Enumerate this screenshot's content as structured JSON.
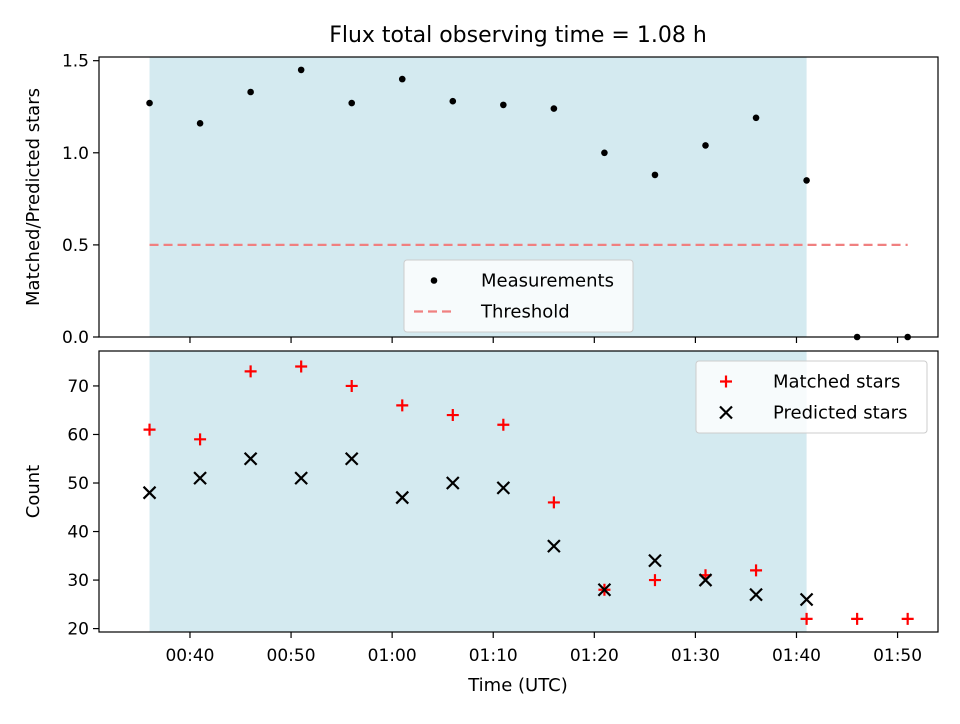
{
  "figure": {
    "title": "Flux total observing time = 1.08 h",
    "xlabel": "Time (UTC)",
    "x_tick_labels": [
      "00:40",
      "00:50",
      "01:00",
      "01:10",
      "01:20",
      "01:30",
      "01:40",
      "01:50"
    ]
  },
  "chart_data": [
    {
      "type": "scatter",
      "panel": "top",
      "ylabel": "Matched/Predicted stars",
      "xlim": [
        "00:31",
        "01:54"
      ],
      "ylim": [
        0,
        1.52
      ],
      "y_ticks": [
        0.0,
        0.5,
        1.0,
        1.5
      ],
      "y_tick_labels": [
        "0.0",
        "0.5",
        "1.0",
        "1.5"
      ],
      "shaded_span": [
        "00:36",
        "01:41"
      ],
      "shade_color": "#d4eaf0",
      "legend_position": "lower-center",
      "series": [
        {
          "name": "Measurements",
          "marker": "dot",
          "color": "#000000",
          "x": [
            "00:36",
            "00:41",
            "00:46",
            "00:51",
            "00:56",
            "01:01",
            "01:06",
            "01:11",
            "01:16",
            "01:21",
            "01:26",
            "01:31",
            "01:36",
            "01:41",
            "01:46",
            "01:51"
          ],
          "y": [
            1.27,
            1.16,
            1.33,
            1.45,
            1.27,
            1.4,
            1.28,
            1.26,
            1.24,
            1.0,
            0.88,
            1.04,
            1.19,
            0.85,
            0.0,
            0.0
          ]
        },
        {
          "name": "Threshold",
          "style": "dashed-line",
          "color": "#f08080",
          "x": [
            "00:36",
            "01:51"
          ],
          "y": [
            0.5,
            0.5
          ]
        }
      ]
    },
    {
      "type": "scatter",
      "panel": "bottom",
      "ylabel": "Count",
      "xlabel": "Time (UTC)",
      "xlim": [
        "00:31",
        "01:54"
      ],
      "ylim": [
        19.3,
        77.2
      ],
      "y_ticks": [
        20,
        30,
        40,
        50,
        60,
        70
      ],
      "y_tick_labels": [
        "20",
        "30",
        "40",
        "50",
        "60",
        "70"
      ],
      "shaded_span": [
        "00:36",
        "01:41"
      ],
      "shade_color": "#d4eaf0",
      "legend_position": "top-right",
      "series": [
        {
          "name": "Matched stars",
          "marker": "plus",
          "color": "#ff0000",
          "x": [
            "00:36",
            "00:41",
            "00:46",
            "00:51",
            "00:56",
            "01:01",
            "01:06",
            "01:11",
            "01:16",
            "01:21",
            "01:26",
            "01:31",
            "01:36",
            "01:41",
            "01:46",
            "01:51"
          ],
          "y": [
            61,
            59,
            73,
            74,
            70,
            66,
            64,
            62,
            46,
            28,
            30,
            31,
            32,
            22,
            22,
            22
          ]
        },
        {
          "name": "Predicted stars",
          "marker": "x",
          "color": "#000000",
          "x": [
            "00:36",
            "00:41",
            "00:46",
            "00:51",
            "00:56",
            "01:01",
            "01:06",
            "01:11",
            "01:16",
            "01:21",
            "01:26",
            "01:31",
            "01:36",
            "01:41"
          ],
          "y": [
            48,
            51,
            55,
            51,
            55,
            47,
            50,
            49,
            37,
            28,
            34,
            30,
            27,
            26
          ]
        }
      ]
    }
  ]
}
